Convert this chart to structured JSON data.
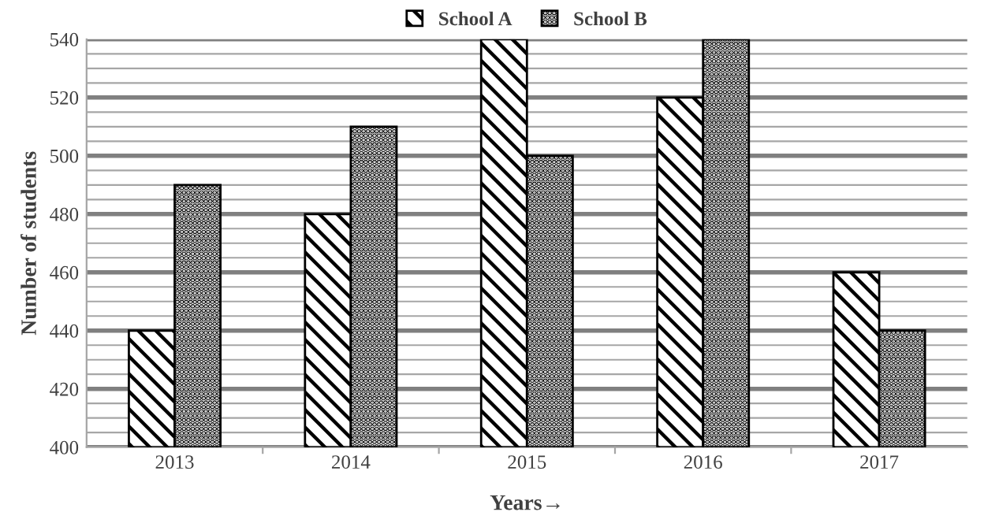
{
  "chart_data": {
    "type": "bar",
    "xlabel": "Years→",
    "ylabel": "Number of students",
    "categories": [
      "2013",
      "2014",
      "2015",
      "2016",
      "2017"
    ],
    "series": [
      {
        "name": "School A",
        "color": "#000000",
        "values": [
          440,
          480,
          540,
          520,
          460
        ]
      },
      {
        "name": "School B",
        "color": "#000000",
        "values": [
          490,
          510,
          500,
          540,
          440
        ]
      }
    ],
    "ylim": [
      400,
      540
    ],
    "yticks": [
      400,
      {
        "value": 405,
        "label": null
      },
      {
        "value": 410,
        "label": null
      },
      {
        "value": 415,
        "label": null
      },
      420,
      {
        "value": 425,
        "label": null
      },
      {
        "value": 430,
        "label": null
      },
      {
        "value": 435,
        "label": null
      },
      440,
      {
        "value": 445,
        "label": null
      },
      {
        "value": 450,
        "label": null
      },
      {
        "value": 455,
        "label": null
      },
      460,
      {
        "value": 465,
        "label": null
      },
      {
        "value": 470,
        "label": null
      },
      {
        "value": 475,
        "label": null
      },
      480,
      {
        "value": 485,
        "label": null
      },
      {
        "value": 490,
        "label": null
      },
      {
        "value": 495,
        "label": null
      },
      500,
      {
        "value": 505,
        "label": null
      },
      {
        "value": 510,
        "label": null
      },
      {
        "value": 515,
        "label": null
      },
      520,
      {
        "value": 525,
        "label": null
      },
      {
        "value": 530,
        "label": null
      },
      {
        "value": 535,
        "label": null
      },
      540
    ],
    "grid": "y",
    "legend": "top"
  }
}
